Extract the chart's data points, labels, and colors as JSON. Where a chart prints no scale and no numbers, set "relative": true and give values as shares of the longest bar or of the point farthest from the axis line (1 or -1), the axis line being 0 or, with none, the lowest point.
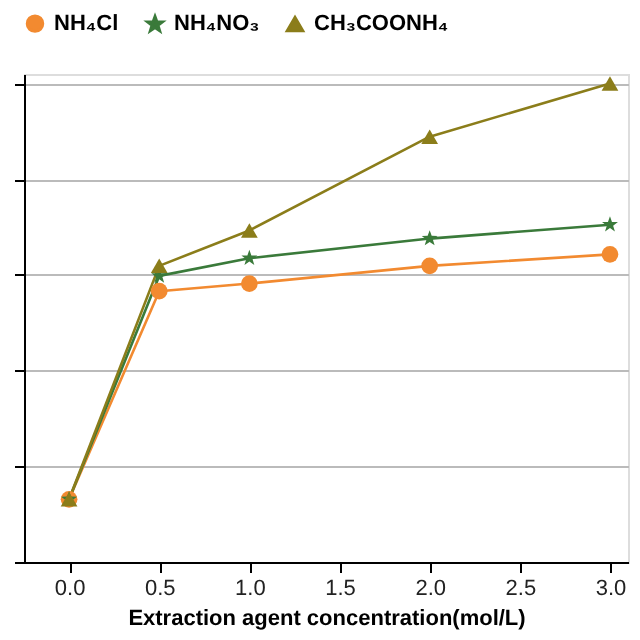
{
  "chart_data": {
    "type": "line",
    "xlabel": "Extraction agent concentration(mol/L)",
    "relative": true,
    "x": [
      0.0,
      0.5,
      1.0,
      2.0,
      3.0
    ],
    "xlim": [
      -0.25,
      3.1
    ],
    "xticks": [
      {
        "value": 0,
        "label": "0.0"
      },
      0.5,
      {
        "value": 1,
        "label": "1.0"
      },
      1.5,
      {
        "value": 2,
        "label": "2.0"
      },
      2.5,
      {
        "value": 3,
        "label": "3.0"
      }
    ],
    "series": [
      {
        "name": "NH₄Cl",
        "color": "#f28a30",
        "marker": "circle",
        "values": [
          0.131,
          0.566,
          0.582,
          0.619,
          0.643
        ]
      },
      {
        "name": "NH₄NO₃",
        "color": "#3a7a3a",
        "marker": "star",
        "values": [
          0.131,
          0.598,
          0.635,
          0.676,
          0.705
        ]
      },
      {
        "name": "CH₃COONH₄",
        "color": "#8b7d1a",
        "marker": "triangle",
        "values": [
          0.131,
          0.619,
          0.693,
          0.889,
          1.0
        ]
      }
    ],
    "grid": "y",
    "legend": "top",
    "line_style": "solid"
  }
}
